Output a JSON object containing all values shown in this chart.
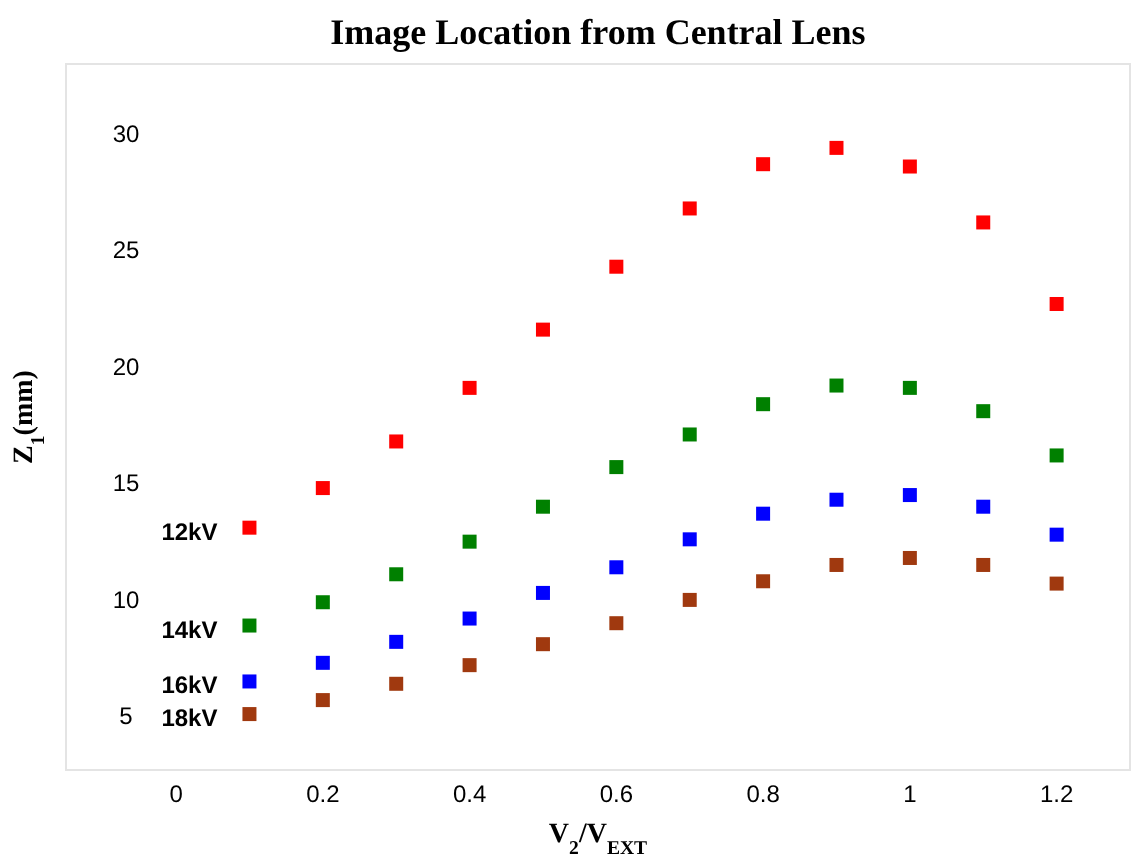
{
  "chart_data": {
    "type": "scatter",
    "title": "Image Location from Central Lens",
    "xlabel": "V$_{2}$/V$_{EXT}$",
    "ylabel": "Z$_{1}$(mm)",
    "x": [
      0.1,
      0.2,
      0.3,
      0.4,
      0.5,
      0.6,
      0.7,
      0.8,
      0.9,
      1.0,
      1.1,
      1.2
    ],
    "series": [
      {
        "name": "12kV",
        "color": "#ff0000",
        "values": [
          13.1,
          14.8,
          16.8,
          19.1,
          21.6,
          24.3,
          26.8,
          28.7,
          29.4,
          28.6,
          26.2,
          22.7
        ]
      },
      {
        "name": "14kV",
        "color": "#008000",
        "values": [
          8.9,
          9.9,
          11.1,
          12.5,
          14.0,
          15.7,
          17.1,
          18.4,
          19.2,
          19.1,
          18.1,
          16.2
        ]
      },
      {
        "name": "16kV",
        "color": "#0000ff",
        "values": [
          6.5,
          7.3,
          8.2,
          9.2,
          10.3,
          11.4,
          12.6,
          13.7,
          14.3,
          14.5,
          14.0,
          12.8
        ]
      },
      {
        "name": "18kV",
        "color": "#a0390f",
        "values": [
          5.1,
          5.7,
          6.4,
          7.2,
          8.1,
          9.0,
          10.0,
          10.8,
          11.5,
          11.8,
          11.5,
          10.7
        ]
      }
    ],
    "xlim": [
      -0.15,
      1.3
    ],
    "ylim": [
      2.7,
      33
    ],
    "xticks": [
      0,
      0.2,
      0.4,
      0.6,
      0.8,
      1,
      1.2
    ],
    "yticks": [
      5,
      10,
      15,
      20,
      25,
      30
    ],
    "marker": "square",
    "grid": false
  }
}
